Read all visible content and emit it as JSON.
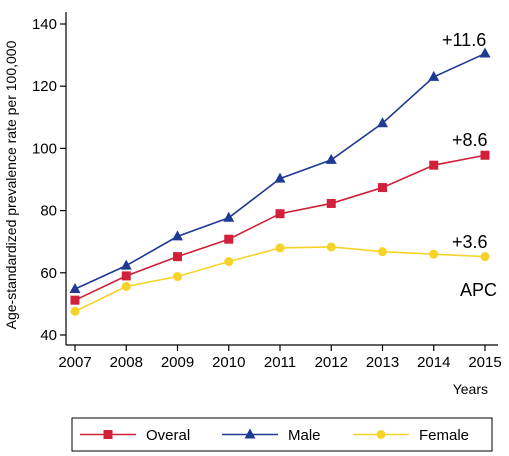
{
  "chart_data": {
    "type": "line",
    "title": "",
    "xlabel": "Years",
    "ylabel": "Age-standardized prevalence rate per 100,000",
    "x": [
      2007,
      2008,
      2009,
      2010,
      2011,
      2012,
      2013,
      2014,
      2015
    ],
    "xlim": [
      2007,
      2015
    ],
    "ylim": [
      40,
      140
    ],
    "yticks": [
      40,
      60,
      80,
      100,
      120,
      140
    ],
    "grid": false,
    "legend_position": "bottom",
    "series": [
      {
        "name": "Overal",
        "color": "#d0203a",
        "marker": "square",
        "values": [
          51.2,
          59.0,
          65.2,
          70.8,
          79.0,
          82.3,
          87.4,
          94.6,
          97.8
        ]
      },
      {
        "name": "Male",
        "color": "#1f3a93",
        "marker": "triangle",
        "values": [
          54.8,
          62.3,
          71.7,
          77.7,
          90.3,
          96.3,
          108.1,
          123.0,
          130.5
        ]
      },
      {
        "name": "Female",
        "color": "#f5d328",
        "marker": "circle",
        "values": [
          47.6,
          55.6,
          58.8,
          63.6,
          68.0,
          68.3,
          66.8,
          66.0,
          65.2
        ]
      }
    ],
    "annotations": [
      {
        "text": "+11.6",
        "series": "Male"
      },
      {
        "text": "+8.6",
        "series": "Overal"
      },
      {
        "text": "+3.6",
        "series": "Female"
      },
      {
        "text": "APC",
        "series": ""
      }
    ]
  }
}
